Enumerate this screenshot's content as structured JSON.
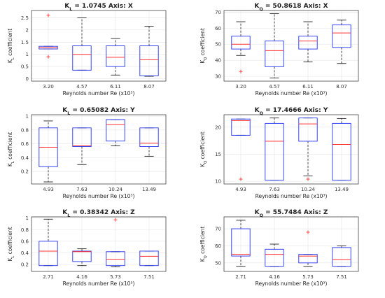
{
  "colors": {
    "box": "#2233ee",
    "median": "#ff3333",
    "whisker": "#222222",
    "outlier": "#ff3333",
    "grid": "#e4e4e4"
  },
  "chart_data": [
    {
      "type": "boxplot",
      "title_sym": "K",
      "title_sub": "L",
      "title_rest": " = 1.0745 Axis: X",
      "ylabel_sym": "K",
      "ylabel_sub": "L",
      "ylabel_rest": " coefficient",
      "xlabel": "Reynolds number Re (x10³)",
      "categories": [
        "3.20",
        "4.57",
        "6.11",
        "8.07"
      ],
      "ylim": [
        -0.1,
        2.8
      ],
      "yticks": [
        "0",
        "0.5",
        "1",
        "1.5",
        "2",
        "2.5"
      ],
      "ytick_values": [
        0,
        0.5,
        1,
        1.5,
        2,
        2.5
      ],
      "boxes": [
        {
          "whislo": 1.22,
          "q1": 1.22,
          "med": 1.28,
          "q3": 1.33,
          "whishi": 1.33,
          "fliers": [
            2.6,
            0.9
          ]
        },
        {
          "whislo": 0.35,
          "q1": 0.35,
          "med": 1.0,
          "q3": 1.35,
          "whishi": 2.5,
          "fliers": []
        },
        {
          "whislo": 0.15,
          "q1": 0.5,
          "med": 0.88,
          "q3": 1.35,
          "whishi": 1.65,
          "fliers": []
        },
        {
          "whislo": 0.1,
          "q1": 0.12,
          "med": 0.78,
          "q3": 1.35,
          "whishi": 2.15,
          "fliers": []
        }
      ]
    },
    {
      "type": "boxplot",
      "title_sym": "K",
      "title_sub": "Q",
      "title_rest": " = 50.8618 Axis: X",
      "ylabel_sym": "K",
      "ylabel_sub": "Q",
      "ylabel_rest": " coefficient",
      "xlabel": "Reynolds number Re (x10³)",
      "categories": [
        "3.20",
        "4.57",
        "6.11",
        "8.07"
      ],
      "ylim": [
        27,
        71
      ],
      "yticks": [
        "30",
        "40",
        "50",
        "60",
        "70"
      ],
      "ytick_values": [
        30,
        40,
        50,
        60,
        70
      ],
      "boxes": [
        {
          "whislo": 43,
          "q1": 47,
          "med": 50,
          "q3": 55,
          "whishi": 64,
          "fliers": [
            33
          ]
        },
        {
          "whislo": 29,
          "q1": 36,
          "med": 46,
          "q3": 52,
          "whishi": 69,
          "fliers": []
        },
        {
          "whislo": 39,
          "q1": 47,
          "med": 52,
          "q3": 55,
          "whishi": 64,
          "fliers": []
        },
        {
          "whislo": 38,
          "q1": 48,
          "med": 57,
          "q3": 62,
          "whishi": 65,
          "fliers": []
        }
      ]
    },
    {
      "type": "boxplot",
      "title_sym": "K",
      "title_sub": "L",
      "title_rest": " = 0.65082 Axis: Y",
      "ylabel_sym": "K",
      "ylabel_sub": "L",
      "ylabel_rest": " coefficient",
      "xlabel": "Reynolds number Re (x10³)",
      "categories": [
        "4.93",
        "7.63",
        "10.24",
        "13.49"
      ],
      "ylim": [
        0.02,
        1.02
      ],
      "yticks": [
        "0.2",
        "0.4",
        "0.6",
        "0.8",
        "1"
      ],
      "ytick_values": [
        0.2,
        0.4,
        0.6,
        0.8,
        1.0
      ],
      "boxes": [
        {
          "whislo": 0.05,
          "q1": 0.27,
          "med": 0.55,
          "q3": 0.83,
          "whishi": 0.93,
          "fliers": []
        },
        {
          "whislo": 0.3,
          "q1": 0.56,
          "med": 0.57,
          "q3": 0.83,
          "whishi": 0.83,
          "fliers": []
        },
        {
          "whislo": 0.57,
          "q1": 0.64,
          "med": 0.88,
          "q3": 0.95,
          "whishi": 0.95,
          "fliers": []
        },
        {
          "whislo": 0.42,
          "q1": 0.56,
          "med": 0.61,
          "q3": 0.83,
          "whishi": 0.83,
          "fliers": []
        }
      ]
    },
    {
      "type": "boxplot",
      "title_sym": "K",
      "title_sub": "Q",
      "title_rest": " = 17.4666 Axis: Y",
      "ylabel_sym": "K",
      "ylabel_sub": "Q",
      "ylabel_rest": " coefficient",
      "xlabel": "Reynolds number Re (x10³)",
      "categories": [
        "4.93",
        "7.63",
        "10.24",
        "13.49"
      ],
      "ylim": [
        9.5,
        22.3
      ],
      "yticks": [
        "10",
        "15",
        "20"
      ],
      "ytick_values": [
        10,
        15,
        20
      ],
      "boxes": [
        {
          "whislo": 18.5,
          "q1": 18.5,
          "med": 21.2,
          "q3": 21.5,
          "whishi": 21.5,
          "fliers": [
            10.4
          ]
        },
        {
          "whislo": 10.2,
          "q1": 10.2,
          "med": 17.4,
          "q3": 20.7,
          "whishi": 21.7,
          "fliers": []
        },
        {
          "whislo": 11.0,
          "q1": 17.4,
          "med": 20.6,
          "q3": 21.7,
          "whishi": 21.7,
          "fliers": [
            10.4
          ]
        },
        {
          "whislo": 10.2,
          "q1": 10.2,
          "med": 16.8,
          "q3": 20.7,
          "whishi": 21.6,
          "fliers": []
        }
      ]
    },
    {
      "type": "boxplot",
      "title_sym": "K",
      "title_sub": "L",
      "title_rest": " = 0.38342 Axis: Z",
      "ylabel_sym": "K",
      "ylabel_sub": "L",
      "ylabel_rest": " coefficient",
      "xlabel": "Reynolds number Re (x10³)",
      "categories": [
        "2.71",
        "4.16",
        "5.73",
        "7.51"
      ],
      "ylim": [
        0.08,
        1.02
      ],
      "yticks": [
        "0.2",
        "0.4",
        "0.6",
        "0.8",
        "1"
      ],
      "ytick_values": [
        0.2,
        0.4,
        0.6,
        0.8,
        1.0
      ],
      "boxes": [
        {
          "whislo": 0.18,
          "q1": 0.18,
          "med": 0.43,
          "q3": 0.6,
          "whishi": 0.98,
          "fliers": []
        },
        {
          "whislo": 0.18,
          "q1": 0.25,
          "med": 0.42,
          "q3": 0.43,
          "whishi": 0.47,
          "fliers": []
        },
        {
          "whislo": 0.16,
          "q1": 0.18,
          "med": 0.29,
          "q3": 0.42,
          "whishi": 0.42,
          "fliers": [
            0.97
          ]
        },
        {
          "whislo": 0.18,
          "q1": 0.18,
          "med": 0.34,
          "q3": 0.43,
          "whishi": 0.43,
          "fliers": []
        }
      ]
    },
    {
      "type": "boxplot",
      "title_sym": "K",
      "title_sub": "Q",
      "title_rest": " = 55.7484 Axis: Z",
      "ylabel_sym": "K",
      "ylabel_sub": "Q",
      "ylabel_rest": " coefficient",
      "xlabel": "Reynolds number Re (x10³)",
      "categories": [
        "2.71",
        "4.16",
        "5.73",
        "7.51"
      ],
      "ylim": [
        45,
        77
      ],
      "yticks": [
        "50",
        "60",
        "70"
      ],
      "ytick_values": [
        50,
        60,
        70
      ],
      "boxes": [
        {
          "whislo": 48,
          "q1": 54,
          "med": 55,
          "q3": 70,
          "whishi": 75,
          "fliers": []
        },
        {
          "whislo": 48,
          "q1": 48,
          "med": 55,
          "q3": 58,
          "whishi": 61,
          "fliers": []
        },
        {
          "whislo": 48,
          "q1": 50,
          "med": 54,
          "q3": 55,
          "whishi": 55,
          "fliers": [
            68
          ]
        },
        {
          "whislo": 48,
          "q1": 48,
          "med": 52,
          "q3": 59,
          "whishi": 60,
          "fliers": []
        }
      ]
    }
  ]
}
